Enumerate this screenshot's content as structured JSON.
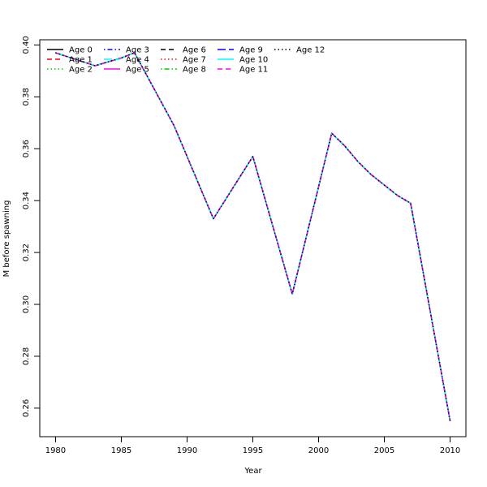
{
  "chart_data": {
    "type": "line",
    "title": "",
    "xlabel": "Year",
    "ylabel": "M before spawning",
    "xlim": [
      1978.8,
      2011.2
    ],
    "ylim": [
      0.249,
      0.402
    ],
    "x_ticks": [
      1980,
      1985,
      1990,
      1995,
      2000,
      2005,
      2010
    ],
    "y_ticks": [
      0.26,
      0.28,
      0.3,
      0.32,
      0.34,
      0.36,
      0.38,
      0.4
    ],
    "y_tick_labels": [
      "0.26",
      "0.28",
      "0.30",
      "0.32",
      "0.34",
      "0.36",
      "0.38",
      "0.40"
    ],
    "grid": false,
    "legend_position": "top-left",
    "x": [
      1980,
      1983,
      1985,
      1986,
      1989,
      1992,
      1995,
      1998,
      2001,
      2002,
      2003,
      2004,
      2005,
      2006,
      2007,
      2010
    ],
    "series": [
      {
        "name": "Age 0",
        "color": "#000000",
        "dash": "solid",
        "values": [
          0.397,
          0.392,
          0.395,
          0.397,
          0.369,
          0.333,
          0.357,
          0.304,
          0.366,
          0.361,
          0.355,
          0.35,
          0.346,
          0.342,
          0.339,
          0.255
        ]
      },
      {
        "name": "Age 1",
        "color": "#ff0000",
        "dash": "dashed",
        "values": [
          0.397,
          0.392,
          0.395,
          0.397,
          0.369,
          0.333,
          0.357,
          0.304,
          0.366,
          0.361,
          0.355,
          0.35,
          0.346,
          0.342,
          0.339,
          0.255
        ]
      },
      {
        "name": "Age 2",
        "color": "#00cd00",
        "dash": "dotted",
        "values": [
          0.397,
          0.392,
          0.395,
          0.397,
          0.369,
          0.333,
          0.357,
          0.304,
          0.366,
          0.361,
          0.355,
          0.35,
          0.346,
          0.342,
          0.339,
          0.255
        ]
      },
      {
        "name": "Age 3",
        "color": "#0000ff",
        "dash": "dotdash",
        "values": [
          0.397,
          0.392,
          0.395,
          0.397,
          0.369,
          0.333,
          0.357,
          0.304,
          0.366,
          0.361,
          0.355,
          0.35,
          0.346,
          0.342,
          0.339,
          0.255
        ]
      },
      {
        "name": "Age 4",
        "color": "#00ffff",
        "dash": "longdash",
        "values": [
          0.397,
          0.392,
          0.395,
          0.397,
          0.369,
          0.333,
          0.357,
          0.304,
          0.366,
          0.361,
          0.355,
          0.35,
          0.346,
          0.342,
          0.339,
          0.255
        ]
      },
      {
        "name": "Age 5",
        "color": "#ff00ff",
        "dash": "solid",
        "values": [
          0.397,
          0.392,
          0.395,
          0.397,
          0.369,
          0.333,
          0.357,
          0.304,
          0.366,
          0.361,
          0.355,
          0.35,
          0.346,
          0.342,
          0.339,
          0.255
        ]
      },
      {
        "name": "Age 6",
        "color": "#000000",
        "dash": "dashed",
        "values": [
          0.397,
          0.392,
          0.395,
          0.397,
          0.369,
          0.333,
          0.357,
          0.304,
          0.366,
          0.361,
          0.355,
          0.35,
          0.346,
          0.342,
          0.339,
          0.255
        ]
      },
      {
        "name": "Age 7",
        "color": "#ff0000",
        "dash": "dotted",
        "values": [
          0.397,
          0.392,
          0.395,
          0.397,
          0.369,
          0.333,
          0.357,
          0.304,
          0.366,
          0.361,
          0.355,
          0.35,
          0.346,
          0.342,
          0.339,
          0.255
        ]
      },
      {
        "name": "Age 8",
        "color": "#00cd00",
        "dash": "dotdash",
        "values": [
          0.397,
          0.392,
          0.395,
          0.397,
          0.369,
          0.333,
          0.357,
          0.304,
          0.366,
          0.361,
          0.355,
          0.35,
          0.346,
          0.342,
          0.339,
          0.255
        ]
      },
      {
        "name": "Age 9",
        "color": "#0000ff",
        "dash": "longdash",
        "values": [
          0.397,
          0.392,
          0.395,
          0.397,
          0.369,
          0.333,
          0.357,
          0.304,
          0.366,
          0.361,
          0.355,
          0.35,
          0.346,
          0.342,
          0.339,
          0.255
        ]
      },
      {
        "name": "Age 10",
        "color": "#00ffff",
        "dash": "solid",
        "values": [
          0.397,
          0.392,
          0.395,
          0.397,
          0.369,
          0.333,
          0.357,
          0.304,
          0.366,
          0.361,
          0.355,
          0.35,
          0.346,
          0.342,
          0.339,
          0.255
        ]
      },
      {
        "name": "Age 11",
        "color": "#ff00ff",
        "dash": "dashed",
        "values": [
          0.397,
          0.392,
          0.395,
          0.397,
          0.369,
          0.333,
          0.357,
          0.304,
          0.366,
          0.361,
          0.355,
          0.35,
          0.346,
          0.342,
          0.339,
          0.255
        ]
      },
      {
        "name": "Age 12",
        "color": "#000000",
        "dash": "dotted",
        "values": [
          0.397,
          0.392,
          0.395,
          0.397,
          0.369,
          0.333,
          0.357,
          0.304,
          0.366,
          0.361,
          0.355,
          0.35,
          0.346,
          0.342,
          0.339,
          0.255
        ]
      }
    ]
  }
}
